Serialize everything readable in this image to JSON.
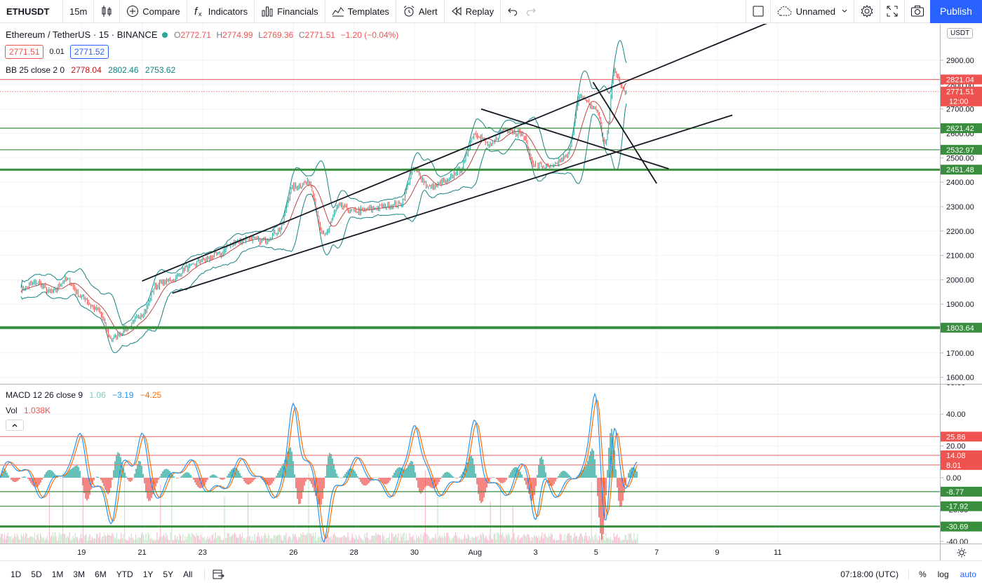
{
  "toolbar": {
    "symbol": "ETHUSDT",
    "interval": "15m",
    "compare": "Compare",
    "indicators": "Indicators",
    "financials": "Financials",
    "templates": "Templates",
    "alert": "Alert",
    "replay": "Replay",
    "layout_name": "Unnamed",
    "publish": "Publish"
  },
  "legend": {
    "title": "Ethereum / TetherUS · 15 · BINANCE",
    "o_label": "O",
    "o": "2772.71",
    "h_label": "H",
    "h": "2774.99",
    "l_label": "L",
    "l": "2769.36",
    "c_label": "C",
    "c": "2771.51",
    "change": "−1.20 (−0.04%)",
    "bid": "2771.51",
    "spread": "0.01",
    "ask": "2771.52"
  },
  "bb": {
    "label": "BB 25 close 2 0",
    "basis": "2778.04",
    "upper": "2802.46",
    "lower": "2753.62"
  },
  "macd": {
    "label": "MACD 12 26 close 9",
    "hist": "1.06",
    "macd": "−3.19",
    "signal": "−4.25"
  },
  "vol": {
    "label": "Vol",
    "value": "1.038K"
  },
  "axis_currency": "USDT",
  "bottom": {
    "ranges": [
      "1D",
      "5D",
      "1M",
      "3M",
      "6M",
      "YTD",
      "1Y",
      "5Y",
      "All"
    ],
    "time": "07:18:00 (UTC)",
    "percent": "%",
    "log": "log",
    "auto": "auto"
  },
  "colors": {
    "up": "#26a69a",
    "down": "#ef5350",
    "band": "#138484",
    "macd": "#2196f3",
    "signal": "#ff6d00",
    "level_green": "#388e3c",
    "level_red": "#b71c1c",
    "accent": "#2962ff"
  },
  "chart_data": [
    {
      "type": "line",
      "title": "Ethereum / TetherUS · 15 · BINANCE",
      "ylim": [
        1580,
        3000
      ],
      "y_ticks": [
        "1600.00",
        "1700.00",
        "1800.00",
        "1900.00",
        "2000.00",
        "2100.00",
        "2200.00",
        "2300.00",
        "2400.00",
        "2500.00",
        "2600.00",
        "2700.00",
        "2800.00",
        "2900.00"
      ],
      "x_ticks": [
        "19",
        "21",
        "23",
        "26",
        "28",
        "30",
        "Aug",
        "3",
        "5",
        "7",
        "9",
        "11"
      ],
      "price_path": [
        {
          "x": "17",
          "y": 1960
        },
        {
          "x": "17.5",
          "y": 1990
        },
        {
          "x": "18",
          "y": 1950
        },
        {
          "x": "18.5",
          "y": 2000
        },
        {
          "x": "19",
          "y": 1930
        },
        {
          "x": "19.5",
          "y": 1880
        },
        {
          "x": "20",
          "y": 1760
        },
        {
          "x": "20.5",
          "y": 1800
        },
        {
          "x": "21",
          "y": 1860
        },
        {
          "x": "21.5",
          "y": 1980
        },
        {
          "x": "22",
          "y": 2000
        },
        {
          "x": "22.5",
          "y": 2050
        },
        {
          "x": "23",
          "y": 2080
        },
        {
          "x": "23.5",
          "y": 2100
        },
        {
          "x": "24",
          "y": 2150
        },
        {
          "x": "24.5",
          "y": 2170
        },
        {
          "x": "25",
          "y": 2160
        },
        {
          "x": "25.5",
          "y": 2200
        },
        {
          "x": "26",
          "y": 2380
        },
        {
          "x": "26.5",
          "y": 2400
        },
        {
          "x": "27",
          "y": 2180
        },
        {
          "x": "27.5",
          "y": 2300
        },
        {
          "x": "28",
          "y": 2280
        },
        {
          "x": "28.5",
          "y": 2290
        },
        {
          "x": "29",
          "y": 2300
        },
        {
          "x": "29.5",
          "y": 2310
        },
        {
          "x": "30",
          "y": 2450
        },
        {
          "x": "30.5",
          "y": 2380
        },
        {
          "x": "31",
          "y": 2400
        },
        {
          "x": "31.5",
          "y": 2450
        },
        {
          "x": "Aug 1",
          "y": 2600
        },
        {
          "x": "Aug 1.5",
          "y": 2550
        },
        {
          "x": "Aug 2",
          "y": 2620
        },
        {
          "x": "Aug 2.5",
          "y": 2600
        },
        {
          "x": "Aug 3",
          "y": 2470
        },
        {
          "x": "Aug 3.5",
          "y": 2460
        },
        {
          "x": "Aug 4",
          "y": 2500
        },
        {
          "x": "Aug 4.5",
          "y": 2750
        },
        {
          "x": "Aug 5",
          "y": 2700
        },
        {
          "x": "Aug 5.3",
          "y": 2560
        },
        {
          "x": "Aug 5.6",
          "y": 2850
        },
        {
          "x": "Aug 6",
          "y": 2771.51
        }
      ],
      "horizontal_levels": [
        {
          "value": "2821.04",
          "color": "#ef5350"
        },
        {
          "value": "2771.51",
          "color": "#ef5350"
        },
        {
          "value": "2621.42",
          "color": "#388e3c"
        },
        {
          "value": "2532.97",
          "color": "#388e3c"
        },
        {
          "value": "2451.48",
          "color": "#388e3c"
        },
        {
          "value": "1803.64",
          "color": "#388e3c"
        }
      ],
      "countdown": "12:00",
      "trendlines": [
        {
          "from": {
            "x": "21",
            "y": 1995
          },
          "to": {
            "x": "11",
            "y": 3070
          }
        },
        {
          "from": {
            "x": "22",
            "y": 1945
          },
          "to": {
            "x": "9.5",
            "y": 2675
          }
        },
        {
          "from": {
            "x": "Aug 1.2",
            "y": 2700
          },
          "to": {
            "x": "7.4",
            "y": 2455
          }
        },
        {
          "from": {
            "x": "Aug 4.9",
            "y": 2810
          },
          "to": {
            "x": "7",
            "y": 2395
          }
        }
      ]
    },
    {
      "type": "line",
      "title": "MACD 12 26 close 9",
      "ylim": [
        -45,
        62
      ],
      "y_ticks": [
        "60.00",
        "40.00",
        "20.00",
        "0.00",
        "-20.00",
        "-40.00"
      ],
      "series": [
        {
          "name": "MACD"
        },
        {
          "name": "Signal"
        }
      ],
      "horizontal_levels": [
        {
          "value": "25.86",
          "color": "#ef5350"
        },
        {
          "value": "14.08",
          "color": "#ef5350"
        },
        {
          "value": "8.01",
          "color": "#ef5350"
        },
        {
          "value": "-8.77",
          "color": "#388e3c"
        },
        {
          "value": "-17.92",
          "color": "#388e3c"
        },
        {
          "value": "-30.69",
          "color": "#388e3c"
        }
      ],
      "peaks": [
        {
          "x": "19",
          "y": 22
        },
        {
          "x": "21",
          "y": 25
        },
        {
          "x": "26",
          "y": 42
        },
        {
          "x": "30",
          "y": 28
        },
        {
          "x": "Aug 1",
          "y": 24
        },
        {
          "x": "Aug 5",
          "y": 50
        },
        {
          "x": "Aug 5.6",
          "y": 40
        }
      ],
      "troughs": [
        {
          "x": "20",
          "y": -22
        },
        {
          "x": "27",
          "y": -30
        },
        {
          "x": "Aug 3",
          "y": -32
        },
        {
          "x": "Aug 5.3",
          "y": -33
        }
      ]
    }
  ]
}
